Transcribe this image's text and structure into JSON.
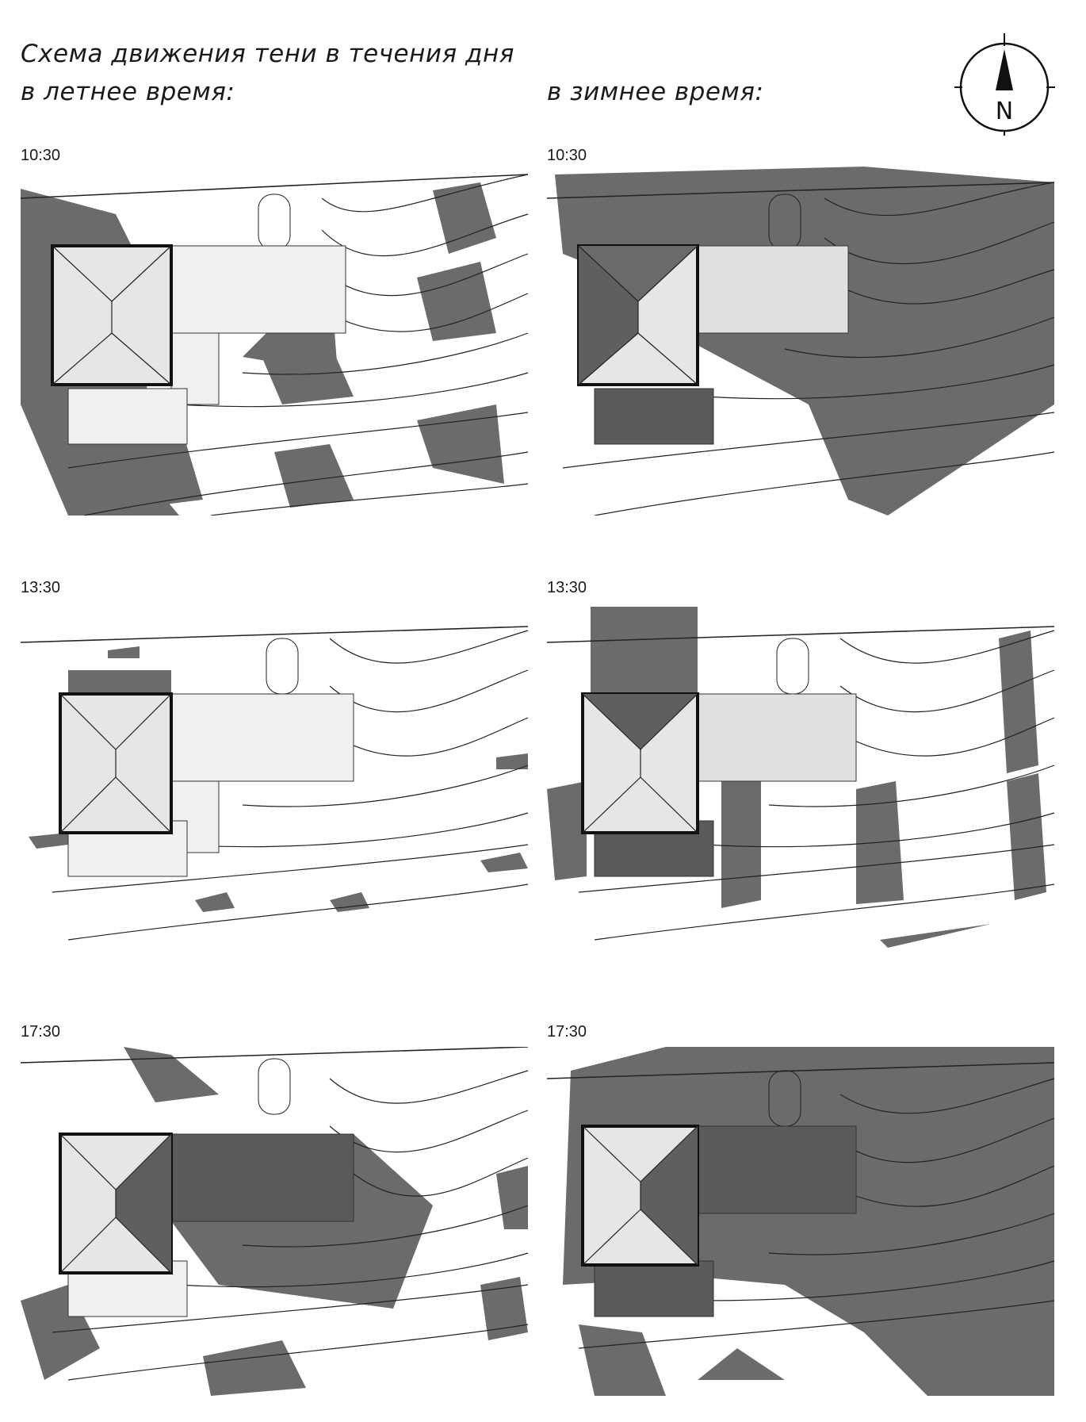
{
  "header": {
    "title": "Схема движения тени в течения дня",
    "summer_label": "в летнее время:",
    "winter_label": "в зимнее время:"
  },
  "compass": {
    "north_label": "N"
  },
  "panels": [
    {
      "time": "10:30"
    },
    {
      "time": "10:30"
    },
    {
      "time": "13:30"
    },
    {
      "time": "13:30"
    },
    {
      "time": "17:30"
    },
    {
      "time": "17:30"
    }
  ],
  "colors": {
    "shadow": "#6b6b6b",
    "line": "#222222",
    "roof_light": "#e6e6e6",
    "roof_dark": "#5f5f5f"
  }
}
